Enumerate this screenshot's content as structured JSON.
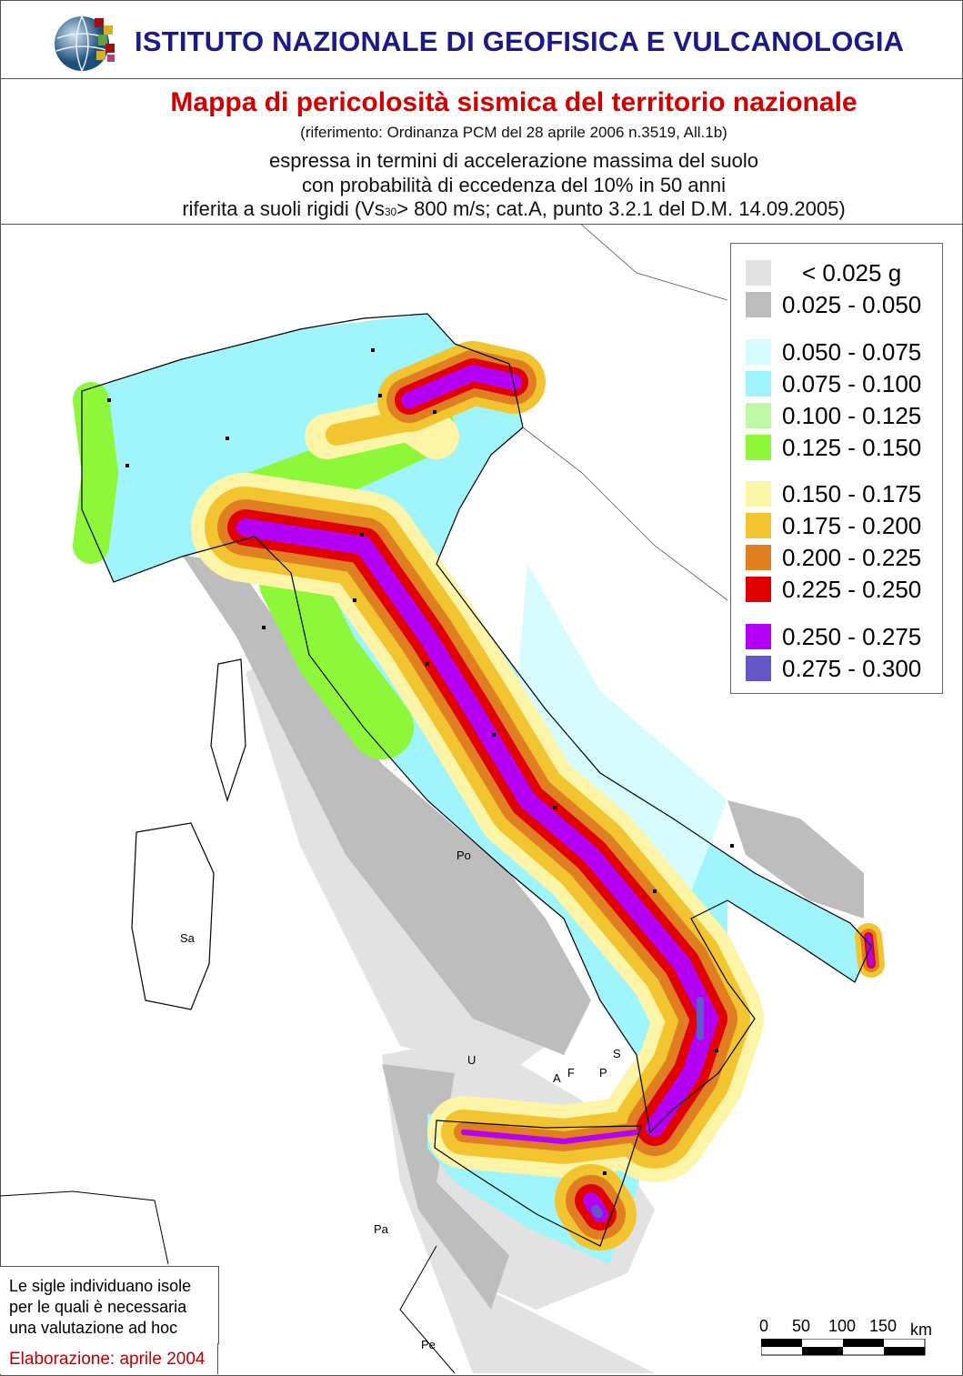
{
  "header": {
    "institute": "ISTITUTO NAZIONALE DI GEOFISICA E VULCANOLOGIA"
  },
  "title": {
    "main": "Mappa di pericolosità sismica del territorio nazionale",
    "reference": "(riferimento: Ordinanza PCM del 28 aprile 2006 n.3519, All.1b)",
    "line1": "espressa in termini di accelerazione massima del suolo",
    "line2": "con probabilità di eccedenza del 10% in 50 anni",
    "line3_pre": "riferita a suoli rigidi (Vs",
    "line3_sub": "30",
    "line3_post": "> 800 m/s; cat.A, punto 3.2.1 del D.M. 14.09.2005)"
  },
  "legend": {
    "unit": "g",
    "items": [
      {
        "label": "< 0.025 g",
        "color": "#e2e2e2"
      },
      {
        "label": "0.025 - 0.050",
        "color": "#bdbdbd"
      },
      {
        "label": "0.050 - 0.075",
        "color": "#d6fcfd"
      },
      {
        "label": "0.075 - 0.100",
        "color": "#a0f4fb"
      },
      {
        "label": "0.100 - 0.125",
        "color": "#bff9a8"
      },
      {
        "label": "0.125 - 0.150",
        "color": "#8ef73a"
      },
      {
        "label": "0.150 - 0.175",
        "color": "#fcf5a8"
      },
      {
        "label": "0.175 - 0.200",
        "color": "#f2c430"
      },
      {
        "label": "0.200 - 0.225",
        "color": "#e07e22"
      },
      {
        "label": "0.225 - 0.250",
        "color": "#e00000"
      },
      {
        "label": "0.250 - 0.275",
        "color": "#b400f5"
      },
      {
        "label": "0.275 - 0.300",
        "color": "#6457c8"
      }
    ]
  },
  "islands": [
    "Po",
    "Sa",
    "U",
    "S",
    "A",
    "F",
    "P",
    "Pa",
    "Pe"
  ],
  "note": {
    "lines": [
      "Le sigle individuano isole",
      "per le quali è necessaria",
      "una valutazione ad hoc"
    ],
    "elaboration": "Elaborazione: aprile 2004"
  },
  "scale": {
    "ticks": [
      "0",
      "50",
      "100",
      "150"
    ],
    "unit": "km"
  }
}
